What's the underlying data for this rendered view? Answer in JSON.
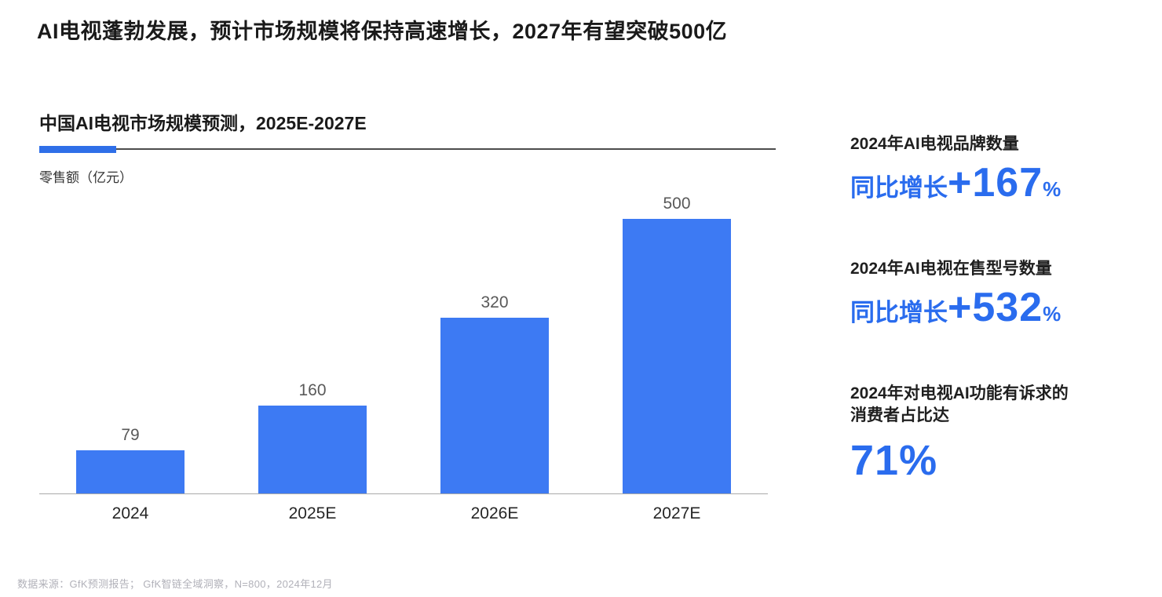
{
  "page": {
    "title": "AI电视蓬勃发展，预计市场规模将保持高速增长，2027年有望突破500亿",
    "footer": "数据来源：GfK预测报告； GfK智链全域洞察，N=800，2024年12月"
  },
  "chart": {
    "title": "中国AI电视市场规模预测，2025E-2027E",
    "unit_label": "零售额（亿元）"
  },
  "chart_data": {
    "type": "bar",
    "categories": [
      "2024",
      "2025E",
      "2026E",
      "2027E"
    ],
    "values": [
      79,
      160,
      320,
      500
    ],
    "title": "中国AI电视市场规模预测，2025E-2027E",
    "xlabel": "",
    "ylabel": "零售额（亿元）",
    "ylim": [
      0,
      500
    ],
    "grid": false,
    "value_labels": true,
    "legend": "none",
    "bar_color": "#3D7AF3"
  },
  "stats": [
    {
      "label": "2024年AI电视品牌数量",
      "prefix": "同比增长",
      "value": "+167",
      "unit": "%"
    },
    {
      "label": "2024年AI电视在售型号数量",
      "prefix": "同比增长",
      "value": "+532",
      "unit": "%"
    },
    {
      "label": "2024年对电视AI功能有诉求的",
      "label2": "消费者占比达",
      "value": "71%"
    }
  ],
  "colors": {
    "accent_blue": "#2F6FE8",
    "bar_blue": "#3D7AF3",
    "stat_text_blue": "#2A6CEE",
    "value_label_gray": "#595959",
    "footer_gray": "#B1B1B9"
  }
}
